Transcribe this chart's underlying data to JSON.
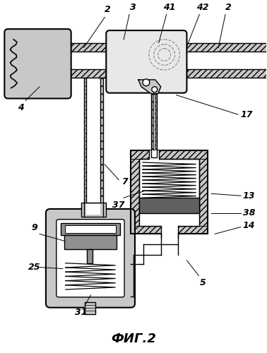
{
  "title": "ФИГ.2",
  "bg_color": "#ffffff",
  "black": "#000000",
  "lgray": "#c8c8c8",
  "mgray": "#909090",
  "dgray": "#606060",
  "xlgray": "#e8e8e8"
}
